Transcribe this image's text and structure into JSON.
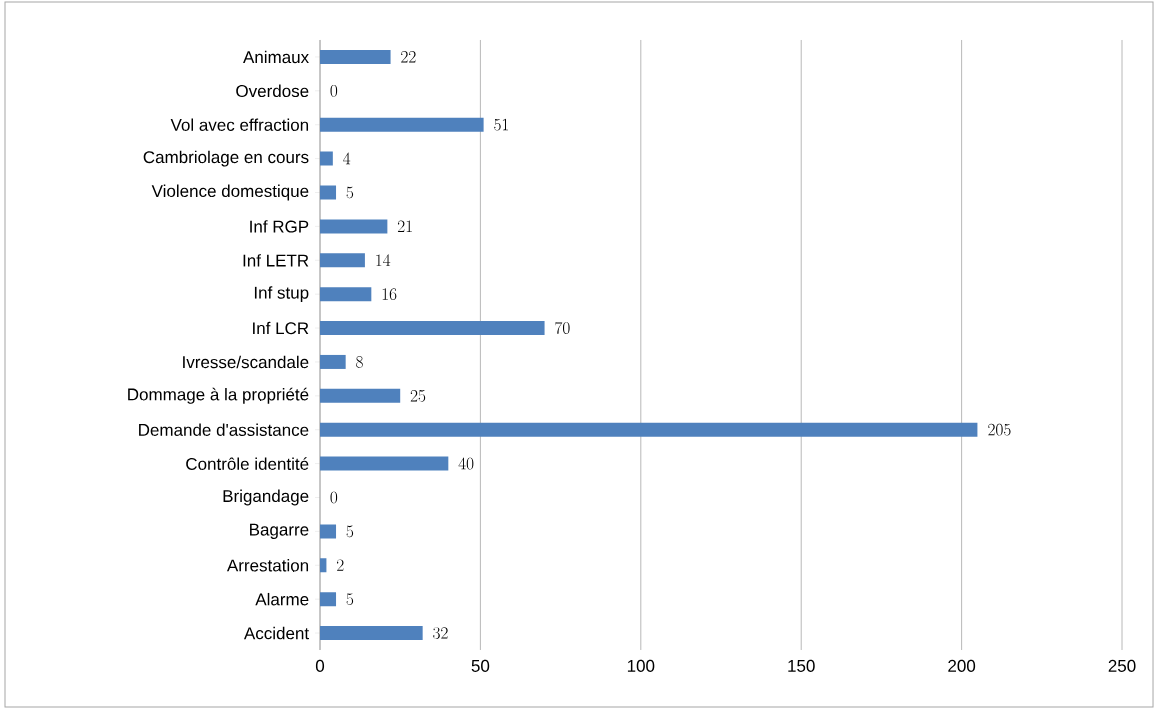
{
  "chart_data": {
    "type": "bar",
    "orientation": "horizontal",
    "categories": [
      "Animaux",
      "Overdose",
      "Vol avec effraction",
      "Cambriolage en cours",
      "Violence domestique",
      "Inf RGP",
      "Inf LETR",
      "Inf stup",
      "Inf LCR",
      "Ivresse/scandale",
      "Dommage à la propriété",
      "Demande d'assistance",
      "Contrôle identité",
      "Brigandage",
      "Bagarre",
      "Arrestation",
      "Alarme",
      "Accident"
    ],
    "values": [
      22,
      0,
      51,
      4,
      5,
      21,
      14,
      16,
      70,
      8,
      25,
      205,
      40,
      0,
      5,
      2,
      5,
      32
    ],
    "color": "#4f81bd",
    "xlim": [
      0,
      250
    ],
    "xticks": [
      0,
      50,
      100,
      150,
      200,
      250
    ],
    "grid": "x",
    "data_labels": true
  }
}
